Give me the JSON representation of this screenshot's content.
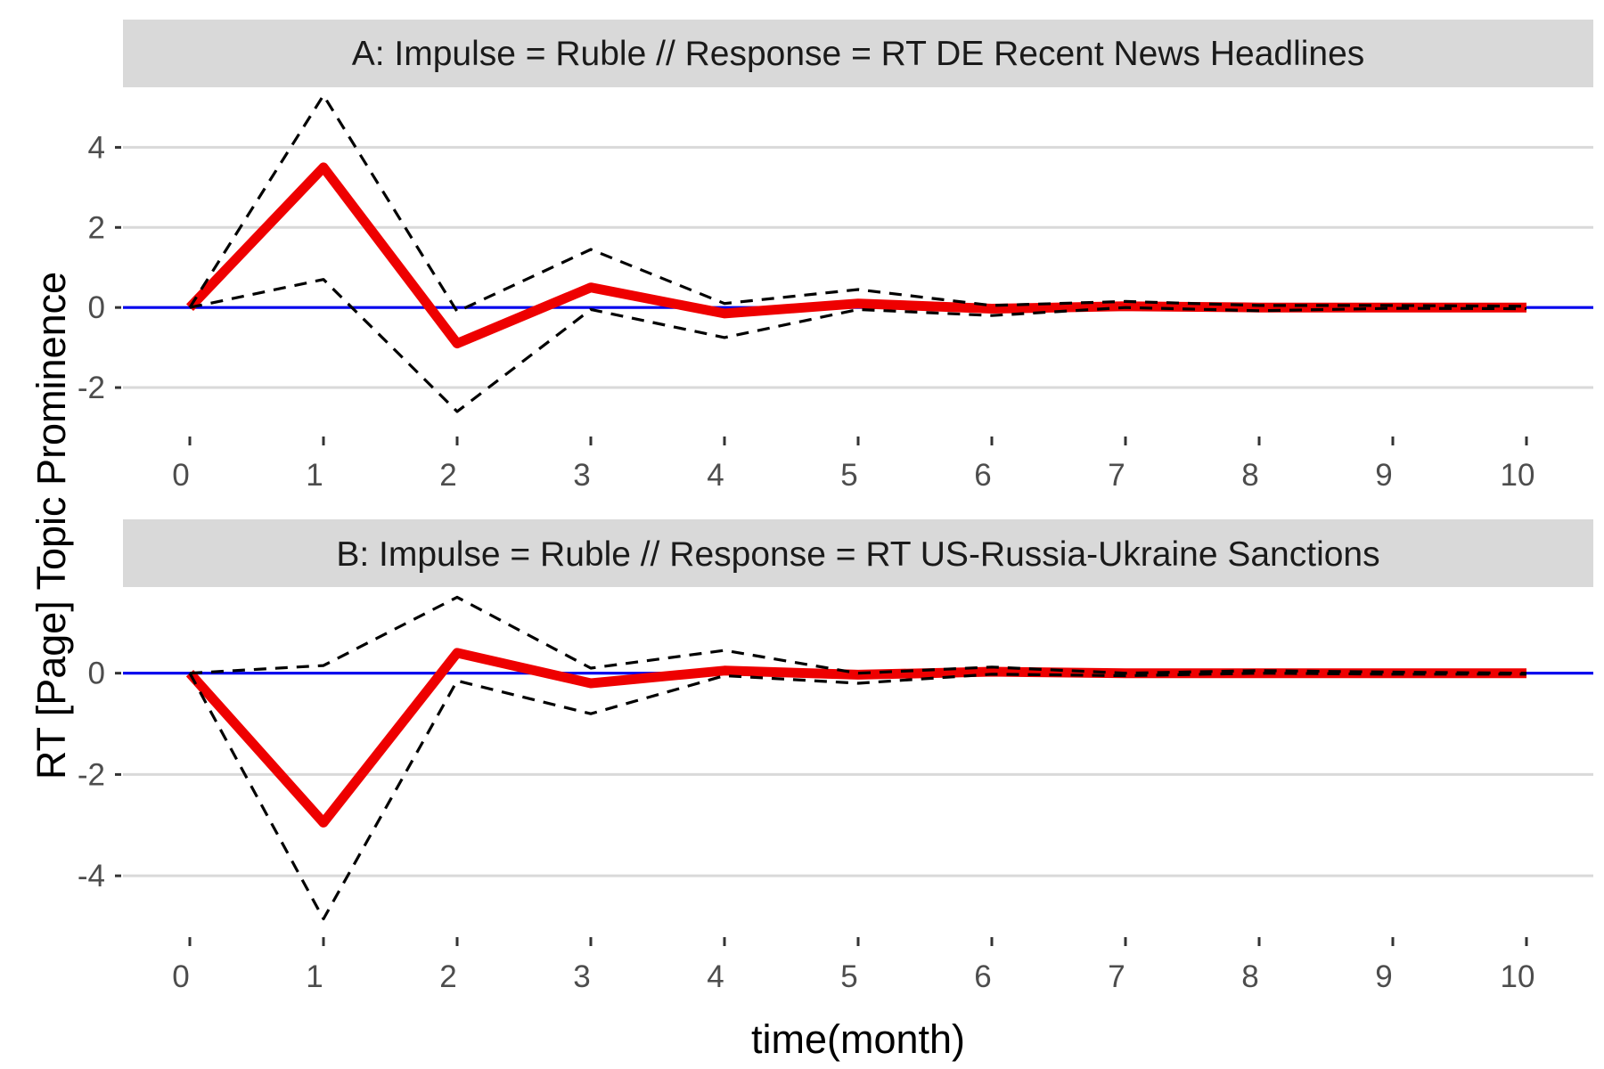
{
  "chart_data": {
    "type": "line",
    "xlabel": "time(month)",
    "ylabel": "RT [Page] Topic Prominence",
    "x_ticks": [
      "0",
      "1",
      "2",
      "3",
      "4",
      "5",
      "6",
      "7",
      "8",
      "9",
      "10"
    ],
    "xlim": [
      -0.5,
      10.5
    ],
    "colors": {
      "response": "#ee0000",
      "ci": "#000000",
      "zero": "#0000ee",
      "strip": "#d9d9d9",
      "grid": "#d9d9d9"
    },
    "panels": [
      {
        "title": "A: Impulse = Ruble // Response = RT DE Recent News Headlines",
        "y_ticks": [
          4,
          2,
          0,
          -2
        ],
        "y_tick_labels": [
          "4",
          "2",
          "0",
          "-2"
        ],
        "ylim": [
          -3,
          5.5
        ],
        "x": [
          0,
          1,
          2,
          3,
          4,
          5,
          6,
          7,
          8,
          9,
          10
        ],
        "series": [
          {
            "values": [
              0,
              3.5,
              -0.9,
              0.5,
              -0.15,
              0.1,
              -0.03,
              0.03,
              0.0,
              0.0,
              0.0
            ]
          },
          {
            "values": [
              0,
              5.3,
              -0.1,
              1.45,
              0.1,
              0.45,
              0.05,
              0.15,
              0.05,
              0.05,
              0.03
            ]
          },
          {
            "values": [
              0,
              0.7,
              -2.6,
              -0.05,
              -0.75,
              -0.05,
              -0.2,
              0.0,
              -0.08,
              -0.02,
              -0.03
            ]
          }
        ]
      },
      {
        "title": "B: Impulse = Ruble // Response = RT US-Russia-Ukraine Sanctions",
        "y_ticks": [
          0,
          -2,
          -4
        ],
        "y_tick_labels": [
          "0",
          "-2",
          "-4"
        ],
        "ylim": [
          -5,
          1.7
        ],
        "x": [
          0,
          1,
          2,
          3,
          4,
          5,
          6,
          7,
          8,
          9,
          10
        ],
        "series": [
          {
            "values": [
              0,
              -2.95,
              0.4,
              -0.2,
              0.05,
              -0.03,
              0.03,
              0.0,
              0.0,
              0.0,
              0.0
            ]
          },
          {
            "values": [
              0,
              0.15,
              1.5,
              0.1,
              0.45,
              0.0,
              0.12,
              0.0,
              0.05,
              0.02,
              0.0
            ]
          },
          {
            "values": [
              0,
              -4.85,
              -0.15,
              -0.8,
              -0.05,
              -0.2,
              -0.02,
              -0.05,
              0.0,
              -0.02,
              -0.02
            ]
          }
        ]
      }
    ]
  }
}
